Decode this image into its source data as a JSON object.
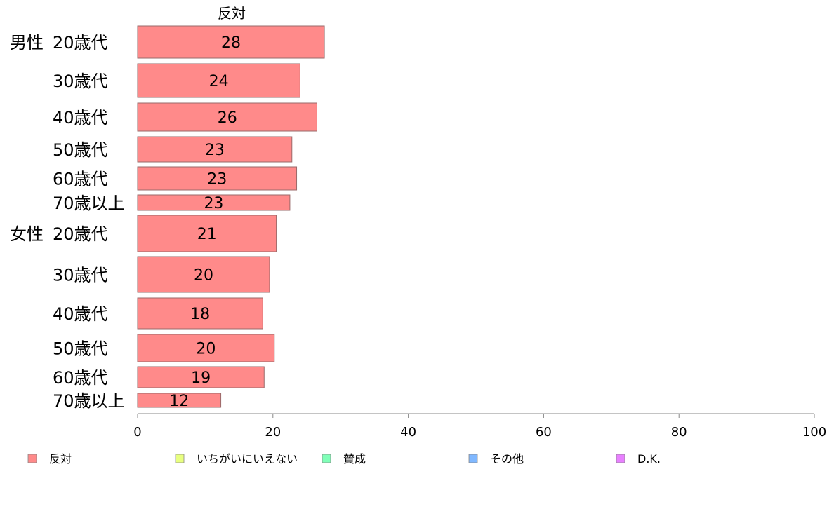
{
  "chart_data": {
    "type": "bar",
    "orientation": "horizontal",
    "stacked": true,
    "column_title": "反対",
    "groups": [
      {
        "name": "男性",
        "rows": [
          "20歳代",
          "30歳代",
          "40歳代",
          "50歳代",
          "60歳代",
          "70歳以上"
        ]
      },
      {
        "name": "女性",
        "rows": [
          "20歳代",
          "30歳代",
          "40歳代",
          "50歳代",
          "60歳代",
          "70歳以上"
        ]
      }
    ],
    "series": [
      {
        "name": "反対",
        "color": "#FF8A8A",
        "values": [
          27.6,
          24.0,
          26.5,
          22.8,
          23.5,
          22.5,
          20.5,
          19.5,
          18.5,
          20.2,
          18.7,
          12.3
        ]
      },
      {
        "name": "いちがいにいえない",
        "color": "#E8FF80",
        "values": []
      },
      {
        "name": "賛成",
        "color": "#80FFB8",
        "values": []
      },
      {
        "name": "その他",
        "color": "#80B8FF",
        "values": []
      },
      {
        "name": "D.K.",
        "color": "#E880FF",
        "values": []
      }
    ],
    "data_labels": [
      "28",
      "24",
      "26",
      "23",
      "23",
      "23",
      "21",
      "20",
      "18",
      "20",
      "19",
      "12"
    ],
    "xlim": [
      0,
      100
    ],
    "x_ticks": [
      0,
      20,
      40,
      60,
      80,
      100
    ],
    "xlabel": "",
    "ylabel": "",
    "grid": false,
    "legend_position": "bottom"
  }
}
